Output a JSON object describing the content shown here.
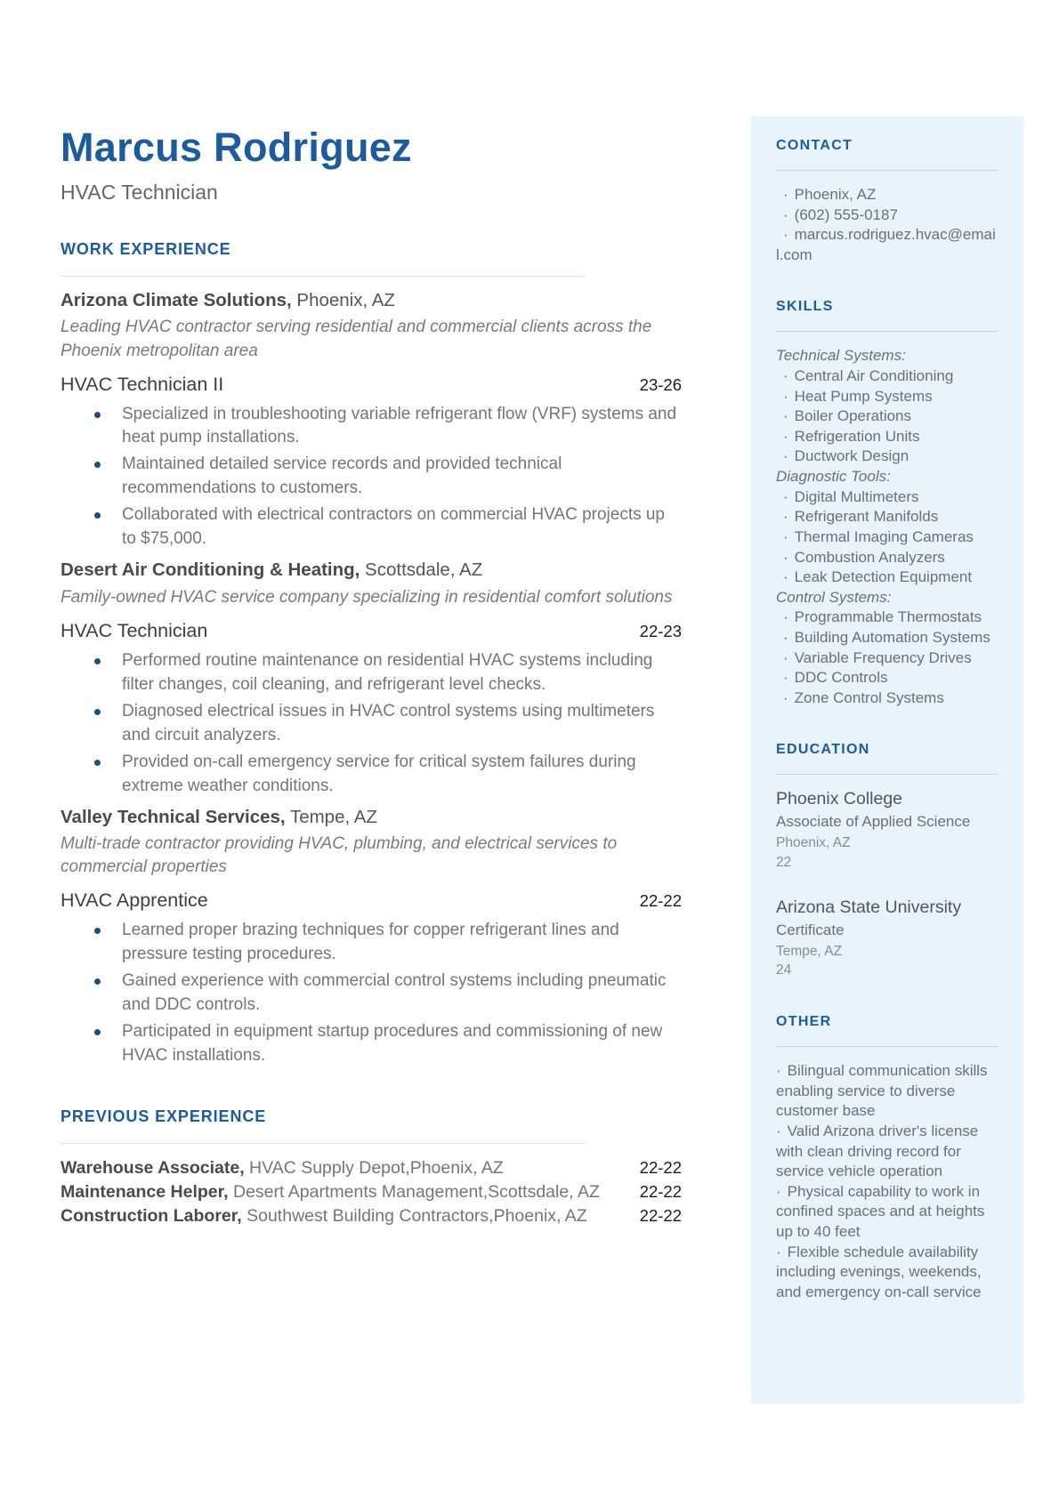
{
  "header": {
    "name": "Marcus Rodriguez",
    "title": "HVAC Technician"
  },
  "work_experience": {
    "heading": "WORK EXPERIENCE",
    "jobs": [
      {
        "company": "Arizona Climate Solutions,",
        "location": "Phoenix, AZ",
        "description": "Leading HVAC contractor serving residential and commercial clients across the Phoenix metropolitan area",
        "title": "HVAC Technician II",
        "dates": "23-26",
        "bullets": [
          "Specialized in troubleshooting variable refrigerant flow (VRF) systems and heat pump installations.",
          "Maintained detailed service records and provided technical recommendations to customers.",
          "Collaborated with electrical contractors on commercial HVAC projects up to $75,000."
        ]
      },
      {
        "company": "Desert Air Conditioning & Heating,",
        "location": "Scottsdale, AZ",
        "description": "Family-owned HVAC service company specializing in residential comfort solutions",
        "title": "HVAC Technician",
        "dates": "22-23",
        "bullets": [
          "Performed routine maintenance on residential HVAC systems including filter changes, coil cleaning, and refrigerant level checks.",
          "Diagnosed electrical issues in HVAC control systems using multimeters and circuit analyzers.",
          "Provided on-call emergency service for critical system failures during extreme weather conditions."
        ]
      },
      {
        "company": "Valley Technical Services,",
        "location": "Tempe, AZ",
        "description": "Multi-trade contractor providing HVAC, plumbing, and electrical services to commercial properties",
        "title": "HVAC Apprentice",
        "dates": "22-22",
        "bullets": [
          "Learned proper brazing techniques for copper refrigerant lines and pressure testing procedures.",
          "Gained experience with commercial control systems including pneumatic and DDC controls.",
          "Participated in equipment startup procedures and commissioning of new HVAC installations."
        ]
      }
    ]
  },
  "previous_experience": {
    "heading": "PREVIOUS EXPERIENCE",
    "rows": [
      {
        "role": "Warehouse Associate,",
        "org": "HVAC Supply Depot,Phoenix, AZ",
        "dates": "22-22"
      },
      {
        "role": "Maintenance Helper,",
        "org": "Desert Apartments Management,Scottsdale, AZ",
        "dates": "22-22"
      },
      {
        "role": "Construction Laborer,",
        "org": "Southwest Building Contractors,Phoenix, AZ",
        "dates": "22-22"
      }
    ]
  },
  "sidebar": {
    "contact": {
      "heading": "CONTACT",
      "items": [
        "Phoenix, AZ",
        "(602) 555-0187",
        "marcus.rodriguez.hvac@email.com"
      ]
    },
    "skills": {
      "heading": "SKILLS",
      "groups": [
        {
          "label": "Technical Systems:",
          "items": [
            "Central Air Conditioning",
            "Heat Pump Systems",
            "Boiler Operations",
            "Refrigeration Units",
            "Ductwork Design"
          ]
        },
        {
          "label": "Diagnostic Tools:",
          "items": [
            "Digital Multimeters",
            "Refrigerant Manifolds",
            "Thermal Imaging Cameras",
            "Combustion Analyzers",
            "Leak Detection Equipment"
          ]
        },
        {
          "label": "Control Systems:",
          "items": [
            "Programmable Thermostats",
            "Building Automation Systems",
            "Variable Frequency Drives",
            "DDC Controls",
            "Zone Control Systems"
          ]
        }
      ]
    },
    "education": {
      "heading": "EDUCATION",
      "schools": [
        {
          "name": "Phoenix College",
          "degree": "Associate of Applied Science",
          "location": "Phoenix, AZ",
          "year": "22"
        },
        {
          "name": "Arizona State University",
          "degree": "Certificate",
          "location": "Tempe, AZ",
          "year": "24"
        }
      ]
    },
    "other": {
      "heading": "OTHER",
      "items": [
        "Bilingual communication skills enabling service to diverse customer base",
        "Valid Arizona driver's license with clean driving record for service vehicle operation",
        "Physical capability to work in confined spaces and at heights up to 40 feet",
        "Flexible schedule availability including evenings, weekends, and emergency on-call service"
      ]
    }
  },
  "colors": {
    "accent": "#1c5b9e",
    "sidebar_bg": "#e9f3fc",
    "bullet_dot": "#1f4e79",
    "divider": "#e3e3e3",
    "sidebar_divider": "#ccd5dc"
  }
}
